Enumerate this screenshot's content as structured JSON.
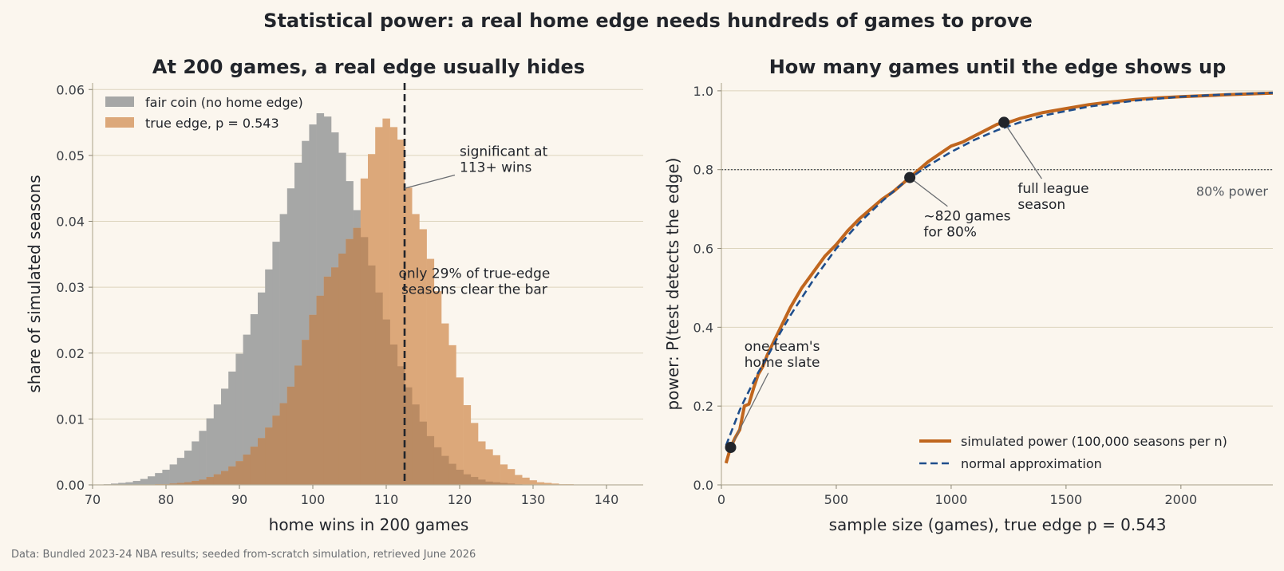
{
  "suptitle": "Statistical power: a real home edge needs hundreds of games to prove",
  "footer": "Data: Bundled 2023-24 NBA results; seeded from-scratch simulation, retrieved June 2026",
  "colors": {
    "background": "#fbf6ee",
    "fair": "#a6a7a6",
    "edge": "#dca87a",
    "overlap": "#ba8b63",
    "power_line": "#c0661e",
    "normal_line": "#1f4e8c",
    "marker": "#22252b",
    "grid": "#dcd4bd",
    "text": "#22252b"
  },
  "chart_data": [
    {
      "type": "bar",
      "title": "At 200 games, a real edge usually hides",
      "xlabel": "home wins in 200 games",
      "ylabel": "share of simulated seasons",
      "xlim": [
        70,
        145
      ],
      "ylim": [
        0,
        0.061
      ],
      "xticks": [
        "70",
        "80",
        "90",
        "100",
        "110",
        "120",
        "130",
        "140"
      ],
      "yticks": [
        "0.00",
        "0.01",
        "0.02",
        "0.03",
        "0.04",
        "0.05",
        "0.06"
      ],
      "grid": "horizontal",
      "legend_position": "top-left",
      "threshold": 112.5,
      "series": [
        {
          "name": "fair coin (no home edge)",
          "x": [
            71,
            72,
            73,
            74,
            75,
            76,
            77,
            78,
            79,
            80,
            81,
            82,
            83,
            84,
            85,
            86,
            87,
            88,
            89,
            90,
            91,
            92,
            93,
            94,
            95,
            96,
            97,
            98,
            99,
            100,
            101,
            102,
            103,
            104,
            105,
            106,
            107,
            108,
            109,
            110,
            111,
            112,
            113,
            114,
            115,
            116,
            117,
            118,
            119,
            120,
            121,
            122,
            123,
            124,
            125,
            126,
            127,
            128,
            129,
            130
          ],
          "values": [
            5e-05,
            0.0001,
            0.0002,
            0.0003,
            0.0004,
            0.0006,
            0.0009,
            0.0013,
            0.0018,
            0.0023,
            0.0031,
            0.0041,
            0.0052,
            0.0066,
            0.0082,
            0.0101,
            0.0122,
            0.0146,
            0.0172,
            0.0199,
            0.0228,
            0.0259,
            0.0292,
            0.0327,
            0.0369,
            0.0411,
            0.045,
            0.0489,
            0.0522,
            0.0547,
            0.0564,
            0.0559,
            0.0535,
            0.0504,
            0.0461,
            0.0417,
            0.0376,
            0.0333,
            0.0292,
            0.0251,
            0.0213,
            0.018,
            0.0148,
            0.0122,
            0.0096,
            0.0074,
            0.0057,
            0.0044,
            0.0032,
            0.0023,
            0.0016,
            0.0012,
            0.0008,
            0.0005,
            0.0004,
            0.0003,
            0.0002,
            0.0001,
            5e-05,
            3e-05
          ]
        },
        {
          "name": "true edge, p = 0.543",
          "x": [
            76,
            77,
            78,
            79,
            80,
            81,
            82,
            83,
            84,
            85,
            86,
            87,
            88,
            89,
            90,
            91,
            92,
            93,
            94,
            95,
            96,
            97,
            98,
            99,
            100,
            101,
            102,
            103,
            104,
            105,
            106,
            107,
            108,
            109,
            110,
            111,
            112,
            113,
            114,
            115,
            116,
            117,
            118,
            119,
            120,
            121,
            122,
            123,
            124,
            125,
            126,
            127,
            128,
            129,
            130,
            131,
            132,
            133,
            134,
            135,
            136,
            137,
            138,
            139,
            140,
            141
          ],
          "values": [
            2e-05,
            3e-05,
            5e-05,
            0.0001,
            0.0001,
            0.0002,
            0.0003,
            0.0004,
            0.0006,
            0.0008,
            0.0012,
            0.0016,
            0.0021,
            0.0028,
            0.0036,
            0.0046,
            0.0058,
            0.0071,
            0.0087,
            0.0105,
            0.0124,
            0.0149,
            0.0181,
            0.022,
            0.0258,
            0.0287,
            0.0316,
            0.033,
            0.0351,
            0.0373,
            0.039,
            0.0465,
            0.0502,
            0.0543,
            0.0556,
            0.0543,
            0.0524,
            0.0451,
            0.0411,
            0.0388,
            0.0343,
            0.0294,
            0.0245,
            0.0212,
            0.0163,
            0.0121,
            0.0094,
            0.0066,
            0.0054,
            0.0045,
            0.0031,
            0.0024,
            0.0015,
            0.0011,
            0.0007,
            0.0004,
            0.0003,
            0.0002,
            0.0001,
            0.0001,
            5e-05,
            3e-05,
            2e-05,
            2e-05,
            1e-05,
            1e-05
          ]
        }
      ],
      "annotations": [
        {
          "lines": [
            "significant at",
            "113+ wins"
          ],
          "at": [
            120,
            0.0475
          ],
          "arrow_to": [
            112.5,
            0.045
          ]
        },
        {
          "lines": [
            "only 29% of true-edge",
            "seasons clear the bar"
          ],
          "at": [
            122,
            0.029
          ]
        }
      ]
    },
    {
      "type": "line",
      "title": "How many games until the edge shows up",
      "xlabel": "sample size (games), true edge p = 0.543",
      "ylabel": "power: P(test detects the edge)",
      "xlim": [
        0,
        2400
      ],
      "ylim": [
        0,
        1.02
      ],
      "xticks": [
        "0",
        "500",
        "1000",
        "1500",
        "2000"
      ],
      "yticks": [
        "0.0",
        "0.2",
        "0.4",
        "0.6",
        "0.8",
        "1.0"
      ],
      "grid": "horizontal",
      "legend_position": "bottom-right",
      "reference_line": {
        "y": 0.8,
        "label": "80% power"
      },
      "series": [
        {
          "name": "simulated power (100,000 seasons per n)",
          "x": [
            20,
            40,
            60,
            80,
            100,
            120,
            140,
            160,
            180,
            200,
            250,
            300,
            350,
            400,
            450,
            500,
            550,
            600,
            650,
            700,
            750,
            800,
            820,
            850,
            900,
            950,
            1000,
            1050,
            1100,
            1150,
            1200,
            1230,
            1250,
            1300,
            1400,
            1500,
            1600,
            1700,
            1800,
            1900,
            2000,
            2200,
            2400
          ],
          "y": [
            0.055,
            0.095,
            0.12,
            0.14,
            0.2,
            0.205,
            0.245,
            0.28,
            0.3,
            0.33,
            0.39,
            0.45,
            0.5,
            0.54,
            0.58,
            0.61,
            0.645,
            0.675,
            0.7,
            0.725,
            0.745,
            0.77,
            0.78,
            0.795,
            0.82,
            0.84,
            0.86,
            0.87,
            0.885,
            0.9,
            0.915,
            0.92,
            0.92,
            0.93,
            0.945,
            0.955,
            0.965,
            0.972,
            0.978,
            0.982,
            0.985,
            0.99,
            0.994
          ]
        },
        {
          "name": "normal approximation",
          "x": [
            20,
            40,
            60,
            80,
            100,
            130,
            160,
            200,
            250,
            300,
            350,
            400,
            450,
            500,
            600,
            700,
            800,
            900,
            1000,
            1100,
            1200,
            1300,
            1400,
            1600,
            1800,
            2000,
            2200,
            2400
          ],
          "y": [
            0.1,
            0.13,
            0.16,
            0.19,
            0.215,
            0.25,
            0.285,
            0.325,
            0.38,
            0.43,
            0.475,
            0.52,
            0.56,
            0.6,
            0.665,
            0.72,
            0.77,
            0.81,
            0.845,
            0.875,
            0.9,
            0.92,
            0.937,
            0.96,
            0.975,
            0.985,
            0.991,
            0.995
          ]
        }
      ],
      "points": [
        {
          "x": 40,
          "y": 0.095
        },
        {
          "x": 820,
          "y": 0.78
        },
        {
          "x": 1230,
          "y": 0.92
        }
      ],
      "annotations": [
        {
          "lines": [
            "one team's",
            "home slate"
          ],
          "at": [
            100,
            0.3
          ],
          "arrow_to": [
            40,
            0.095
          ]
        },
        {
          "lines": [
            "~820 games",
            "for 80%"
          ],
          "at": [
            880,
            0.63
          ],
          "arrow_to": [
            820,
            0.78
          ]
        },
        {
          "lines": [
            "full league",
            "season"
          ],
          "at": [
            1290,
            0.7
          ],
          "arrow_to": [
            1230,
            0.92
          ]
        }
      ]
    }
  ]
}
